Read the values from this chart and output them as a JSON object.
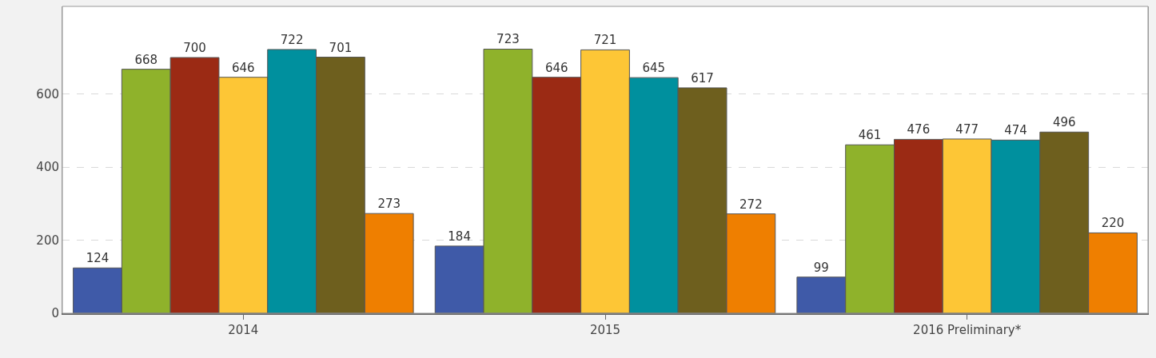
{
  "chart_data": {
    "type": "bar",
    "categories": [
      "2014",
      "2015",
      "2016 Preliminary*"
    ],
    "series": [
      {
        "color": "#3f5aa8",
        "values": [
          124,
          184,
          99
        ]
      },
      {
        "color": "#8fb22b",
        "values": [
          668,
          723,
          461
        ]
      },
      {
        "color": "#9b2a14",
        "values": [
          700,
          646,
          476
        ]
      },
      {
        "color": "#fdc636",
        "values": [
          646,
          721,
          477
        ]
      },
      {
        "color": "#00909e",
        "values": [
          722,
          645,
          474
        ]
      },
      {
        "color": "#6e5f1e",
        "values": [
          701,
          617,
          496
        ]
      },
      {
        "color": "#ef7f00",
        "values": [
          273,
          272,
          220
        ]
      }
    ],
    "ylim": [
      0,
      840
    ],
    "yticks": [
      0,
      200,
      400,
      600
    ],
    "grid": "y",
    "legend": false,
    "data_labels": true
  }
}
